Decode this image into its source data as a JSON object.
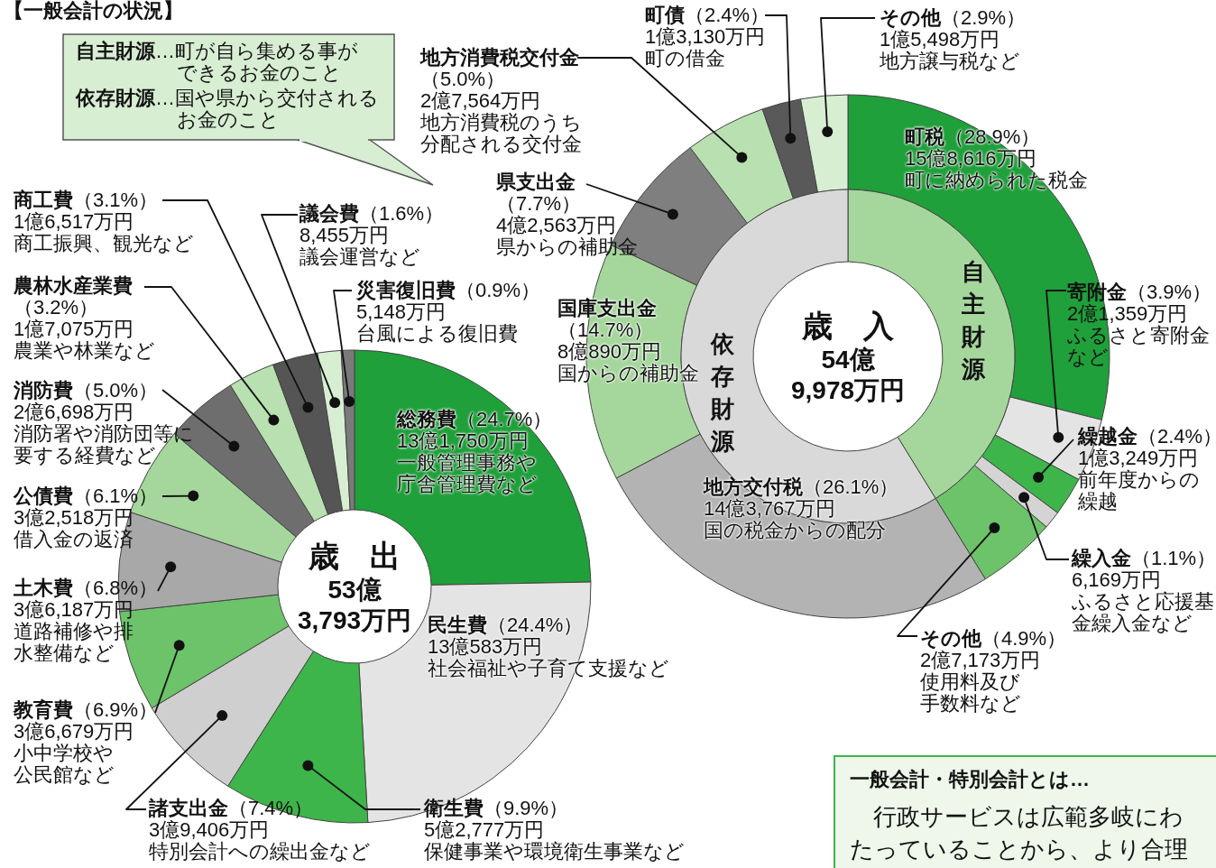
{
  "chart_data": [
    {
      "type": "donut",
      "title": "歳　入",
      "subtitle": "54億9,978万円",
      "categories": [
        "町税",
        "寄附金",
        "繰越金",
        "繰入金",
        "その他",
        "地方交付税",
        "国庫支出金",
        "県支出金",
        "地方消費税交付金",
        "町債",
        "その他"
      ],
      "values": [
        28.9,
        3.9,
        2.4,
        1.1,
        4.9,
        26.1,
        14.7,
        7.7,
        5.0,
        2.4,
        2.9
      ],
      "colors": [
        "#1fa03a",
        "#e4e4e4",
        "#3db54a",
        "#d4d4d4",
        "#6dc36a",
        "#b3b3b3",
        "#a5d79c",
        "#7f7f7f",
        "#b8e0b0",
        "#595959",
        "#d8eed3"
      ],
      "value_labels": [
        "（28.9%）",
        "（3.9%）",
        "（2.4%）",
        "（1.1%）",
        "（4.9%）",
        "（26.1%）",
        "（14.7%）",
        "（7.7%）",
        "（5.0%）",
        "（2.4%）",
        "（2.9%）"
      ],
      "annotations": [
        "15億8,616万円",
        "町に納められた税金",
        "2億1,359万円",
        "ふるさと寄附金など",
        "1億3,249万円",
        "前年度からの繰越",
        "6,169万円",
        "ふるさと応援基金繰入金など",
        "2億7,173万円",
        "使用料及び手数料など",
        "14億3,767万円",
        "国の税金からの配分",
        "8億890万円",
        "国からの補助金",
        "4億2,563万円",
        "県からの補助金",
        "2億7,564万円",
        "地方消費税のうち分配される交付金",
        "1億3,130万円",
        "町の借金",
        "1億5,498万円",
        "地方譲与税など",
        "一般会計・特別会計とは…",
        "行政サービスは広範多岐にわたっていることから、より合理"
      ]
    },
    {
      "type": "donut",
      "categories": [
        "自主財源",
        "依存財源"
      ],
      "values": [
        41.2,
        58.8
      ],
      "colors": [
        "#a5d79c",
        "#d9d9d9"
      ],
      "annotations": [
        "**自主財源**…町が自ら集める事ができるお金のこと",
        "**依存財源**…国や県から交付されるお金のこと"
      ]
    },
    {
      "type": "donut",
      "title": "歳　出",
      "subtitle": "53億3,793万円",
      "categories": [
        "総務費",
        "民生費",
        "衛生費",
        "諸支出金",
        "教育費",
        "土木費",
        "公債費",
        "消防費",
        "農林水産業費",
        "商工費",
        "議会費",
        "災害復旧費"
      ],
      "values": [
        24.7,
        24.4,
        9.9,
        7.4,
        6.9,
        6.8,
        6.1,
        5.0,
        3.2,
        3.1,
        1.6,
        0.9
      ],
      "colors": [
        "#1fa03a",
        "#e4e4e4",
        "#3db54a",
        "#cfcfcf",
        "#6dc36a",
        "#a8a8a8",
        "#a5d79c",
        "#6e6e6e",
        "#b8e0b0",
        "#555555",
        "#d8eed3",
        "#7a7a7a"
      ],
      "value_labels": [
        "（24.7%）",
        "（24.4%）",
        "（9.9%）",
        "（7.4%）",
        "（6.9%）",
        "（6.8%）",
        "（6.1%）",
        "（5.0%）",
        "（3.2%）",
        "（3.1%）",
        "（1.6%）",
        "（0.9%）"
      ],
      "annotations": [
        "13億1,750万円",
        "一般管理事務や庁舎管理費など",
        "13億583万円",
        "社会福祉や子育て支援など",
        "5億2,777万円",
        "保健事業や環境衛生事業など",
        "3億9,406万円",
        "特別会計への繰出金など",
        "3億6,679万円",
        "小中学校や公民館など",
        "3億6,187万円",
        "道路補修や排水整備など",
        "3億2,518万円",
        "借入金の返済",
        "2億6,698万円",
        "消防署や消防団等に要する経費など",
        "1億7,075万円",
        "農業や林業など",
        "1億6,517万円",
        "商工振興、観光など",
        "8,455万円",
        "議会運営など",
        "5,148万円",
        "台風による復旧費",
        "【一般会計の状況】"
      ]
    }
  ]
}
